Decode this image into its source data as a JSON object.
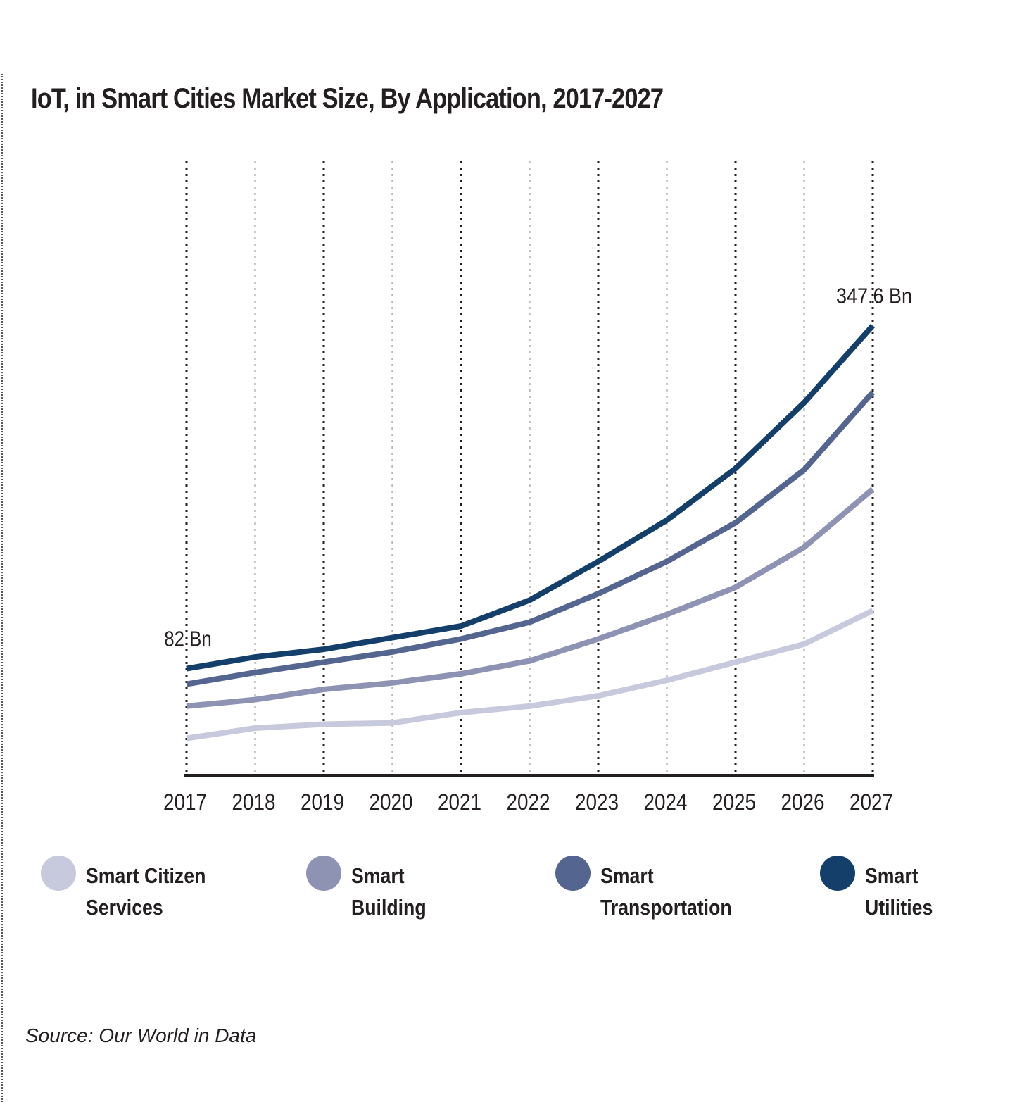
{
  "chart_data": {
    "type": "line",
    "title": "IoT, in Smart Cities Market Size, By Application, 2017-2027",
    "x": [
      "2017",
      "2018",
      "2019",
      "2020",
      "2021",
      "2022",
      "2023",
      "2024",
      "2025",
      "2026",
      "2027"
    ],
    "ylim": [
      0,
      400
    ],
    "grid": true,
    "legend_position": "bottom",
    "series": [
      {
        "name": "Smart Citizen Services",
        "color": "#c7c9dc",
        "values": [
          28,
          36,
          39,
          40,
          48,
          53,
          61,
          73,
          87,
          101,
          127
        ]
      },
      {
        "name": "Smart Building",
        "color": "#8e93b3",
        "values": [
          53,
          58,
          66,
          71,
          78,
          88,
          105,
          124,
          145,
          176,
          221
        ]
      },
      {
        "name": "Smart Transportation",
        "color": "#546590",
        "values": [
          70,
          79,
          87,
          95,
          105,
          118,
          140,
          165,
          195,
          236,
          296
        ]
      },
      {
        "name": "Smart Utilities",
        "color": "#153f6b",
        "values": [
          82,
          91,
          97,
          106,
          115,
          135,
          165,
          197,
          237,
          288,
          347.6
        ]
      }
    ],
    "annotations": [
      {
        "text": "82 Bn",
        "x": "2017",
        "series": "Smart Utilities"
      },
      {
        "text": "347.6 Bn",
        "x": "2027",
        "series": "Smart Utilities"
      }
    ]
  },
  "legend": [
    {
      "line1": "Smart Citizen",
      "line2": "Services",
      "color": "#c7c9dc"
    },
    {
      "line1": "Smart",
      "line2": "Building",
      "color": "#8e93b3"
    },
    {
      "line1": "Smart",
      "line2": "Transportation",
      "color": "#546590"
    },
    {
      "line1": "Smart",
      "line2": "Utilities",
      "color": "#153f6b"
    }
  ],
  "source": "Source: Our World in Data"
}
